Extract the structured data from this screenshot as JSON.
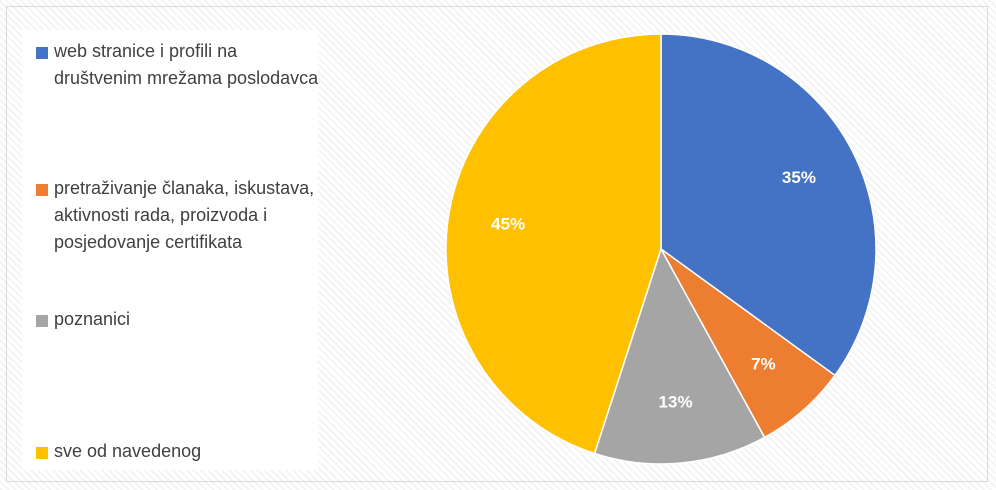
{
  "chart_data": {
    "type": "pie",
    "categories": [
      "web stranice i profili na društvenim mrežama poslodavca",
      "pretraživanje članaka, iskustava, aktivnosti rada, proizvoda i posjedovanje certifikata",
      "poznanici",
      "sve od navedenog"
    ],
    "values": [
      35,
      7,
      13,
      45
    ],
    "value_labels": [
      "35%",
      "7%",
      "13%",
      "45%"
    ],
    "colors": [
      "#4472c4",
      "#ed7d31",
      "#a5a5a5",
      "#ffc000"
    ],
    "legend": "left"
  }
}
